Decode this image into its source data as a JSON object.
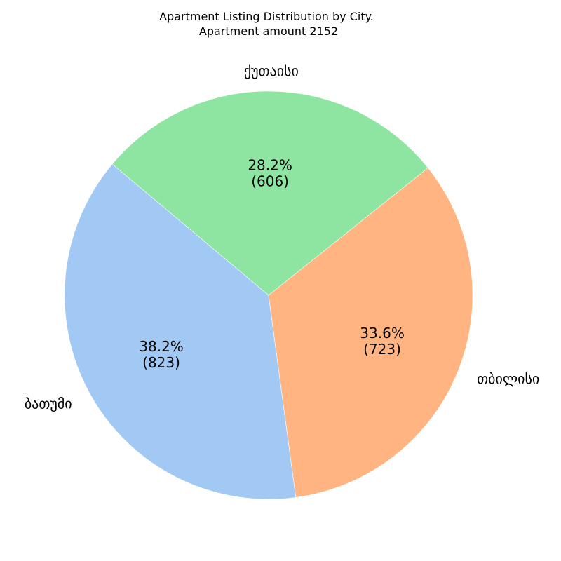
{
  "chart_data": {
    "type": "pie",
    "title": "Apartment Listing Distribution by City.",
    "subtitle": "Apartment amount 2152",
    "slices": [
      {
        "label": "ბათუმი",
        "value": 823,
        "percent": "38.2%",
        "count_text": "(823)",
        "color": "#a1c9f4"
      },
      {
        "label": "თბილისი",
        "value": 723,
        "percent": "33.6%",
        "count_text": "(723)",
        "color": "#ffb482"
      },
      {
        "label": "ქუთაისი",
        "value": 606,
        "percent": "28.2%",
        "count_text": "(606)",
        "color": "#8de5a1"
      }
    ],
    "start_angle_deg": 140,
    "direction": "counterclockwise",
    "legend": "none"
  }
}
